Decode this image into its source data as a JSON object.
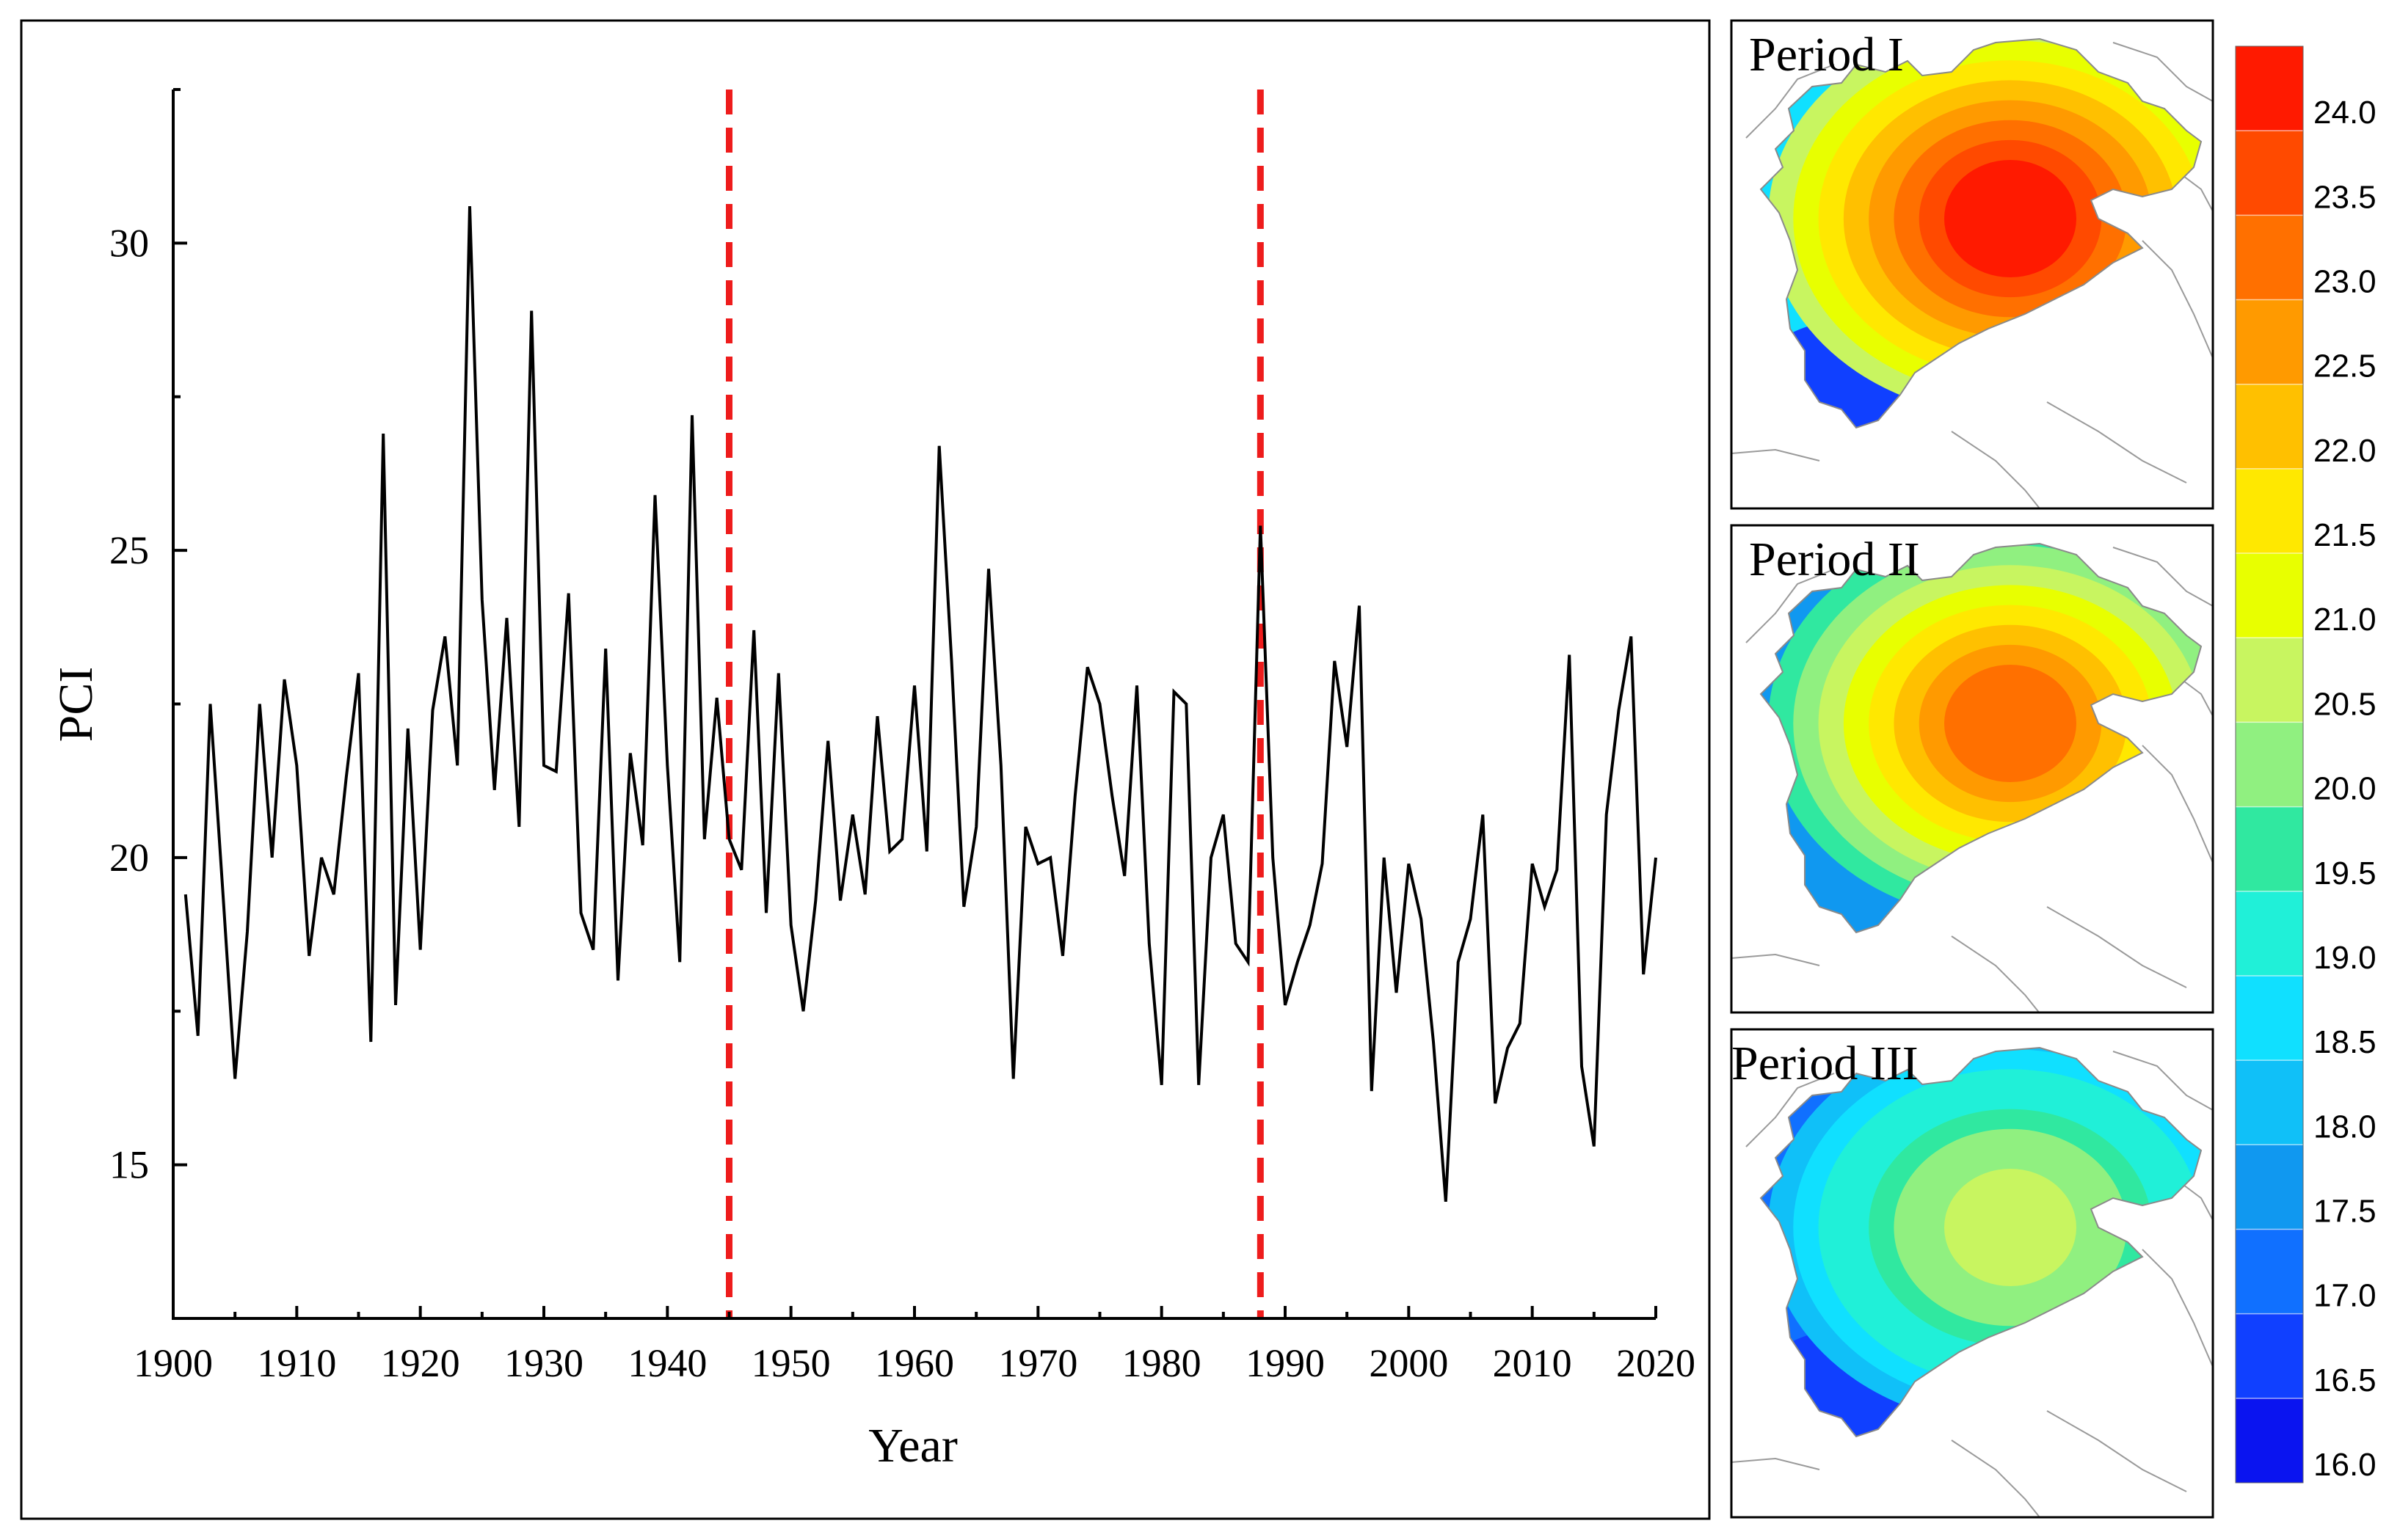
{
  "chart_data": {
    "type": "line",
    "ylabel": "PCI",
    "xlabel": "Year",
    "xlim": [
      1900,
      2020
    ],
    "ylim": [
      12.5,
      32.5
    ],
    "x_ticks": [
      1900,
      1910,
      1920,
      1930,
      1940,
      1950,
      1960,
      1970,
      1980,
      1990,
      2000,
      2010,
      2020
    ],
    "y_ticks": [
      15,
      20,
      25,
      30
    ],
    "change_points": [
      1945,
      1988
    ],
    "series": [
      {
        "name": "PCI",
        "color": "#000000",
        "x": [
          1901,
          1902,
          1903,
          1904,
          1905,
          1906,
          1907,
          1908,
          1909,
          1910,
          1911,
          1912,
          1913,
          1914,
          1915,
          1916,
          1917,
          1918,
          1919,
          1920,
          1921,
          1922,
          1923,
          1924,
          1925,
          1926,
          1927,
          1928,
          1929,
          1930,
          1931,
          1932,
          1933,
          1934,
          1935,
          1936,
          1937,
          1938,
          1939,
          1940,
          1941,
          1942,
          1943,
          1944,
          1945,
          1946,
          1947,
          1948,
          1949,
          1950,
          1951,
          1952,
          1953,
          1954,
          1955,
          1956,
          1957,
          1958,
          1959,
          1960,
          1961,
          1962,
          1963,
          1964,
          1965,
          1966,
          1967,
          1968,
          1969,
          1970,
          1971,
          1972,
          1973,
          1974,
          1975,
          1976,
          1977,
          1978,
          1979,
          1980,
          1981,
          1982,
          1983,
          1984,
          1985,
          1986,
          1987,
          1988,
          1989,
          1990,
          1991,
          1992,
          1993,
          1994,
          1995,
          1996,
          1997,
          1998,
          1999,
          2000,
          2001,
          2002,
          2003,
          2004,
          2005,
          2006,
          2007,
          2008,
          2009,
          2010,
          2011,
          2012,
          2013,
          2014,
          2015,
          2016,
          2017,
          2018,
          2019,
          2020
        ],
        "y": [
          19.4,
          17.1,
          22.5,
          19.5,
          16.4,
          18.8,
          22.5,
          20.0,
          22.9,
          21.5,
          18.4,
          20.0,
          19.4,
          21.3,
          23.0,
          17.0,
          26.9,
          17.6,
          22.1,
          18.5,
          22.4,
          23.6,
          21.5,
          30.6,
          24.2,
          21.1,
          23.9,
          20.5,
          28.9,
          21.5,
          21.4,
          24.3,
          19.1,
          18.5,
          23.4,
          18.0,
          21.7,
          20.2,
          25.9,
          21.5,
          18.3,
          27.2,
          20.3,
          22.6,
          20.3,
          19.8,
          23.7,
          19.1,
          23.0,
          18.9,
          17.5,
          19.3,
          21.9,
          19.3,
          20.7,
          19.4,
          22.3,
          20.1,
          20.3,
          22.8,
          20.1,
          26.7,
          23.2,
          19.2,
          20.5,
          24.7,
          21.5,
          16.4,
          20.5,
          19.9,
          20.0,
          18.4,
          21.0,
          23.1,
          22.5,
          21.0,
          19.7,
          22.8,
          18.6,
          16.3,
          22.7,
          22.5,
          16.3,
          20.0,
          20.7,
          18.6,
          18.3,
          25.4,
          20.0,
          17.6,
          18.3,
          18.9,
          19.9,
          23.2,
          21.8,
          24.1,
          16.2,
          20.0,
          17.8,
          19.9,
          19.0,
          17.0,
          14.4,
          18.3,
          19.0,
          20.7,
          16.0,
          16.9,
          17.3,
          19.9,
          19.2,
          19.8,
          23.3,
          16.6,
          15.3,
          20.7,
          22.4,
          23.6,
          18.1,
          20.0
        ]
      }
    ]
  },
  "maps": [
    {
      "title": "Period I",
      "hotspot_value": 24.2,
      "center_value": 23.5,
      "west_value": 18.5,
      "southwest_value": 16.5
    },
    {
      "title": "Period II",
      "hotspot_value": 23.0,
      "center_value": 22.5,
      "west_value": 17.5,
      "southwest_value": 17.5
    },
    {
      "title": "Period III",
      "hotspot_value": 20.5,
      "center_value": 20.0,
      "west_value": 17.0,
      "southwest_value": 16.5
    }
  ],
  "colorbar": {
    "labels": [
      "24.0",
      "23.5",
      "23.0",
      "22.5",
      "22.0",
      "21.5",
      "21.0",
      "20.5",
      "20.0",
      "19.5",
      "19.0",
      "18.5",
      "18.0",
      "17.5",
      "17.0",
      "16.5",
      "16.0"
    ],
    "colors": [
      "#ff1a00",
      "#ff4a00",
      "#ff7000",
      "#ff9a00",
      "#ffc000",
      "#ffe800",
      "#e8ff00",
      "#c8f560",
      "#90f080",
      "#30e8a0",
      "#20f0d8",
      "#10e0ff",
      "#10c0f8",
      "#1098f0",
      "#1070ff",
      "#1040ff",
      "#0a14f0"
    ]
  },
  "colors": {
    "line": "#000000",
    "change_line": "#ee1c1c"
  }
}
